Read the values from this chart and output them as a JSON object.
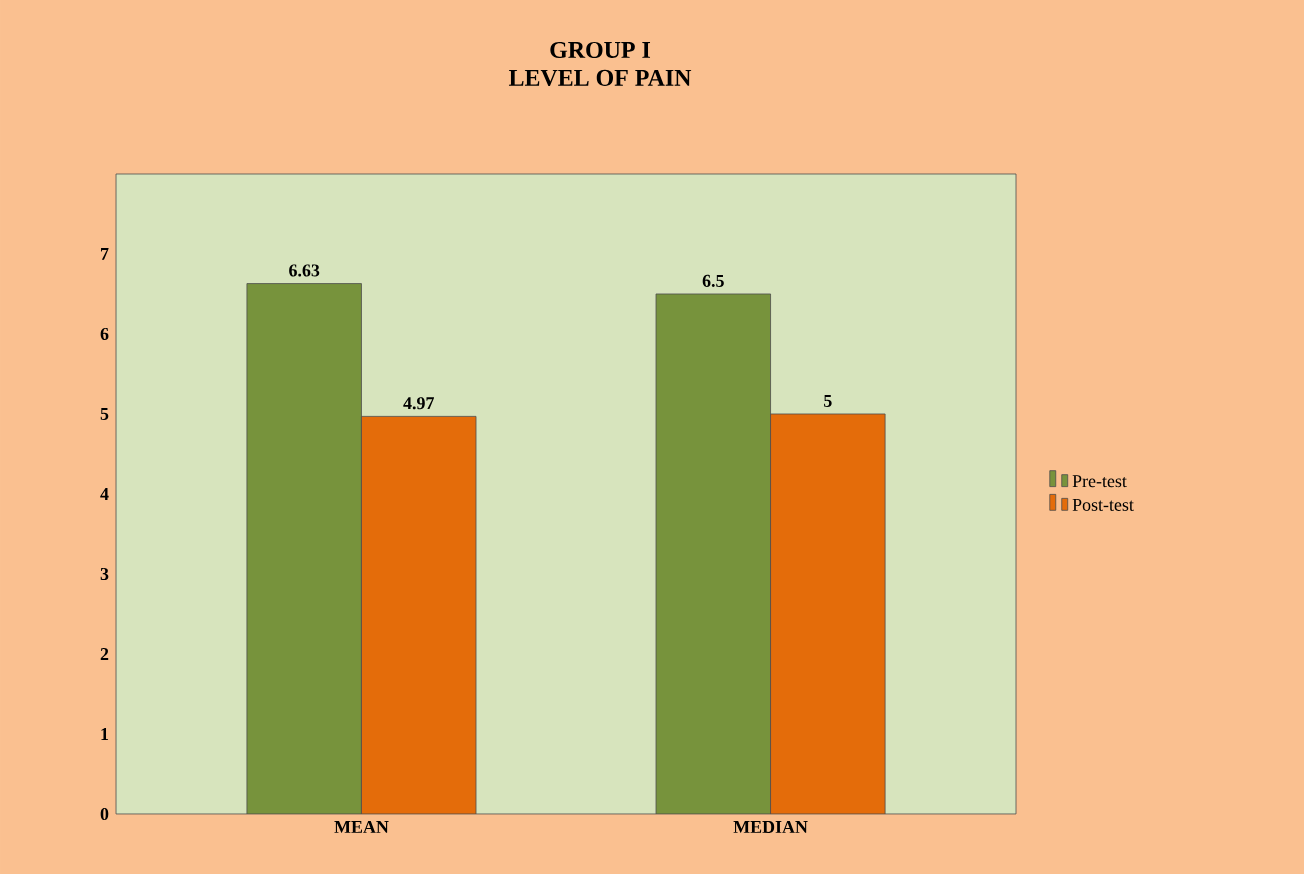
{
  "chart_data": {
    "type": "bar",
    "title": "GROUP I",
    "subtitle": "LEVEL OF PAIN",
    "categories": [
      "MEAN",
      "MEDIAN"
    ],
    "series": [
      {
        "name": "Pre-test",
        "color": "#77933c",
        "values": [
          6.63,
          6.5
        ]
      },
      {
        "name": "Post-test",
        "color": "#e46c0a",
        "values": [
          4.97,
          5
        ]
      }
    ],
    "ylim": [
      0,
      8
    ],
    "yticks": [
      0,
      1,
      2,
      3,
      4,
      5,
      6,
      7
    ],
    "grid": false,
    "legend": "right",
    "data_labels": true
  }
}
